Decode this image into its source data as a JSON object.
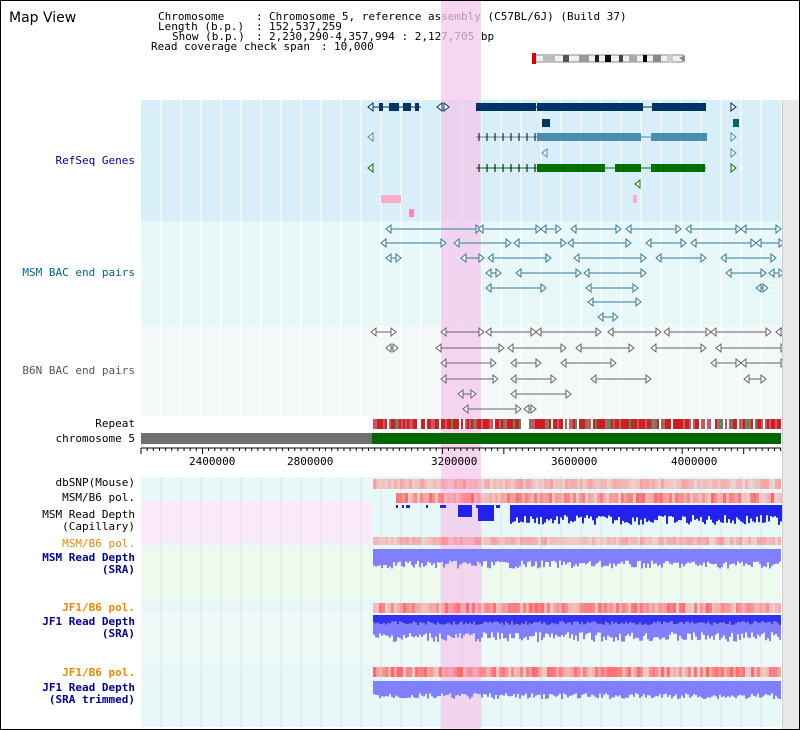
{
  "title": "Map View",
  "header": {
    "chromosome_key": "Chromosome",
    "chromosome_value": "Chromosome 5, reference assembly (C57BL/6J) (Build 37)",
    "length_key": "Length (b.p.)",
    "length_value": "152,537,259",
    "show_key": "Show (b.p.)",
    "show_value": "2,230,290-4,357,994 : 2,127,705 bp",
    "coverage_key": "Read coverage check span",
    "coverage_value": "10,000"
  },
  "tracks": {
    "refseq": "RefSeq Genes",
    "msm_bac": "MSM BAC end pairs",
    "b6n_bac": "B6N BAC end pairs",
    "repeat": "Repeat",
    "chromosome": "chromosome 5",
    "dbsnp": "dbSNP(Mouse)",
    "msm_b6_pol_1": "MSM/B6 pol.",
    "msm_depth_cap_1": "MSM Read Depth",
    "msm_depth_cap_2": "(Capillary)",
    "msm_b6_pol_2": "MSM/B6 pol.",
    "msm_depth_sra_1": "MSM Read Depth",
    "msm_depth_sra_2": "(SRA)",
    "jf1_b6_pol_1": "JF1/B6 pol.",
    "jf1_depth_sra_1": "JF1 Read Depth",
    "jf1_depth_sra_2": "(SRA)",
    "jf1_b6_pol_2": "JF1/B6 pol.",
    "jf1_depth_trim_1": "JF1 Read Depth",
    "jf1_depth_trim_2": "(SRA trimmed)"
  },
  "axis": {
    "ticks": [
      "2400000",
      "2800000",
      "3200000",
      "3600000",
      "4000000"
    ]
  },
  "colors": {
    "refseq_bg": "#d8eef8",
    "bac_bg": "#e8f8f8",
    "b6n_bg": "#f4f8f8",
    "highlight": "#f4c8ee",
    "gene_dark": "#003366",
    "gene_mid": "#4a8cb4",
    "gene_green": "#007000",
    "repeat_red": "#cc2020",
    "chrom_green": "#006600",
    "chrom_grey": "#707070",
    "depth_blue": "#2222ee",
    "depth_light": "#8080ff",
    "pol_red": "#ff6666",
    "label_blue": "#000099",
    "label_orange": "#ee8800"
  }
}
